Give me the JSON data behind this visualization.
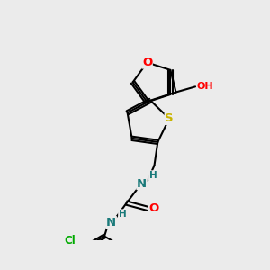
{
  "bg_color": "#ebebeb",
  "bond_color": "#000000",
  "bond_width": 1.5,
  "atom_colors": {
    "O": "#ff0000",
    "S": "#c8b400",
    "N": "#1a7a7a",
    "Cl": "#00aa00",
    "H": "#1a7a7a"
  },
  "font_size": 8.5
}
